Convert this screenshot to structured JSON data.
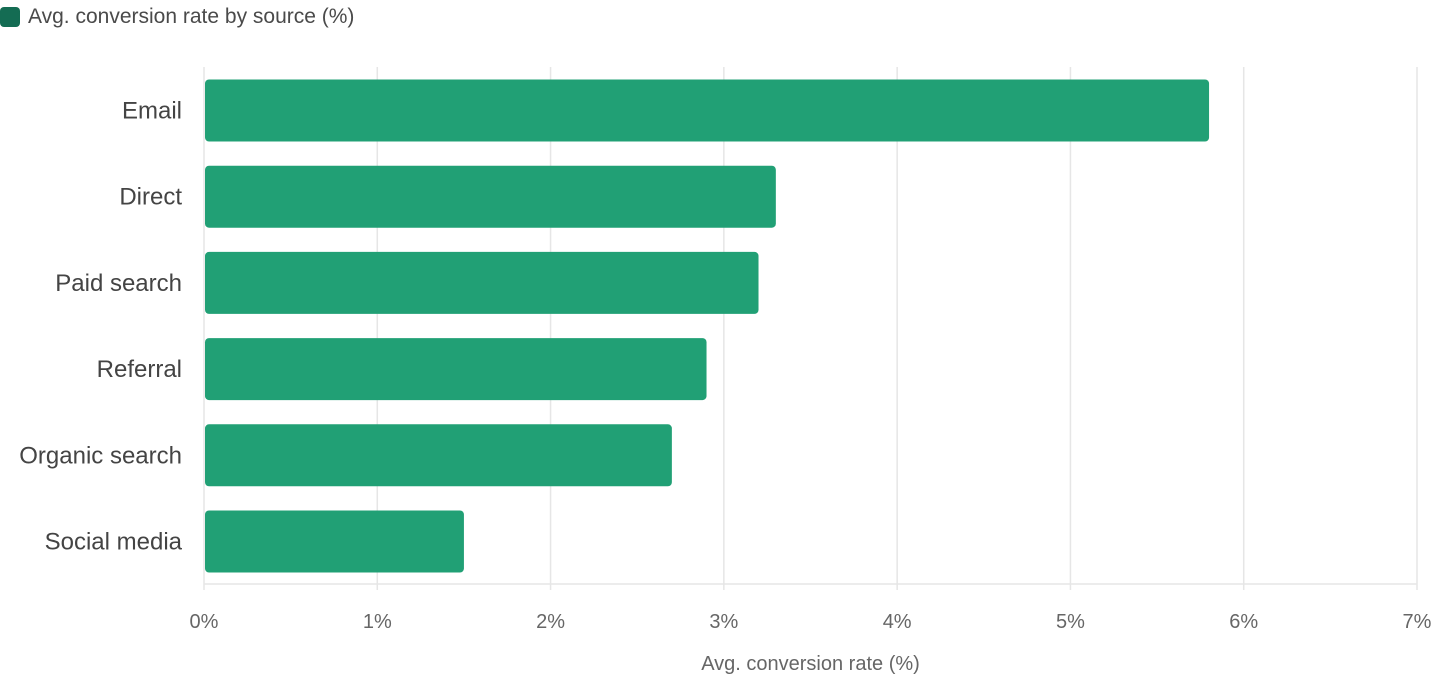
{
  "legend": {
    "label": "Avg. conversion rate by source (%)"
  },
  "colors": {
    "bar": "#21a075",
    "legend_swatch": "#146c53",
    "grid": "#e6e6e6",
    "axis_text": "#666666",
    "category_text": "#444444"
  },
  "chart_data": {
    "type": "bar",
    "orientation": "horizontal",
    "categories": [
      "Email",
      "Direct",
      "Paid search",
      "Referral",
      "Organic search",
      "Social media"
    ],
    "series": [
      {
        "name": "Avg. conversion rate by source (%)",
        "values": [
          5.8,
          3.3,
          3.2,
          2.9,
          2.7,
          1.5
        ]
      }
    ],
    "xlabel": "Avg. conversion rate (%)",
    "ylabel": "",
    "xlim": [
      0,
      7
    ],
    "x_ticks": [
      "0%",
      "1%",
      "2%",
      "3%",
      "4%",
      "5%",
      "6%",
      "7%"
    ],
    "grid": true,
    "legend_position": "top-left"
  }
}
